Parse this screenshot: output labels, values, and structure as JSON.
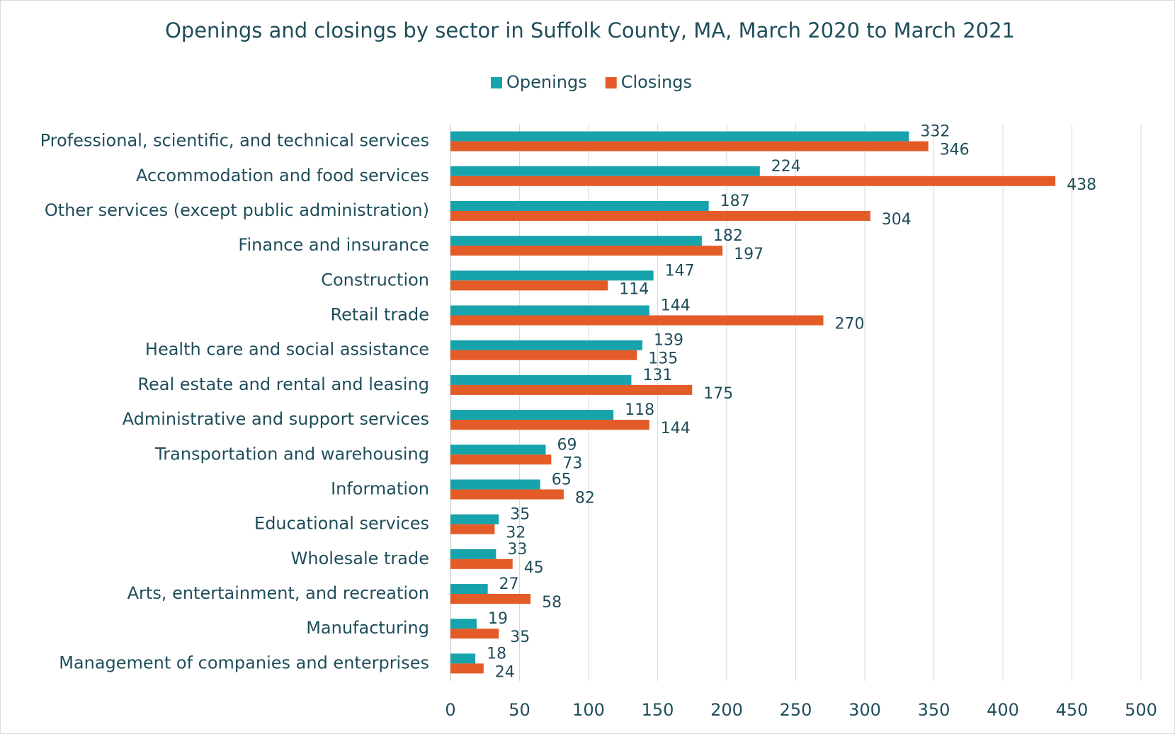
{
  "chart_data": {
    "type": "hbar",
    "title": "Openings and closings by sector in Suffolk County, MA, March 2020 to March 2021",
    "categories": [
      "Professional, scientific, and technical services",
      "Accommodation and food services",
      "Other services (except public administration)",
      "Finance and insurance",
      "Construction",
      "Retail trade",
      "Health care and social assistance",
      "Real estate and rental and leasing",
      "Administrative and support services",
      "Transportation and warehousing",
      "Information",
      "Educational services",
      "Wholesale trade",
      "Arts, entertainment, and recreation",
      "Manufacturing",
      "Management of companies and enterprises"
    ],
    "series": [
      {
        "name": "Openings",
        "color": "#17a3ab",
        "values": [
          332,
          224,
          187,
          182,
          147,
          144,
          139,
          131,
          118,
          69,
          65,
          35,
          33,
          27,
          19,
          18
        ]
      },
      {
        "name": "Closings",
        "color": "#e35b26",
        "values": [
          346,
          438,
          304,
          197,
          114,
          270,
          135,
          175,
          144,
          73,
          82,
          32,
          45,
          58,
          35,
          24
        ]
      }
    ],
    "xlim": [
      0,
      500
    ],
    "xticks": [
      0,
      50,
      100,
      150,
      200,
      250,
      300,
      350,
      400,
      450,
      500
    ],
    "grid": true,
    "legend": "top"
  }
}
